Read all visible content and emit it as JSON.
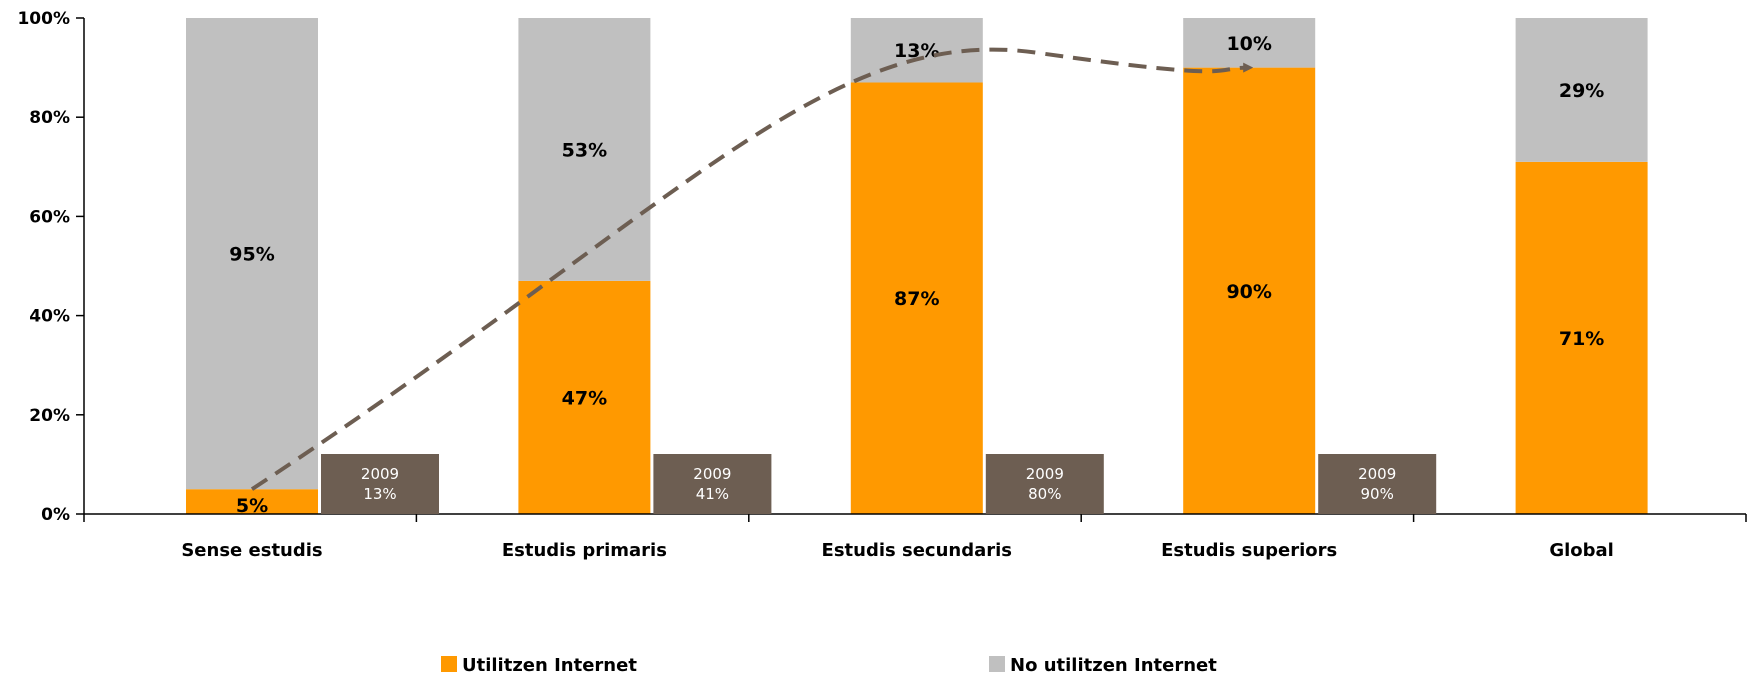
{
  "chart_data": {
    "type": "bar",
    "stacked": true,
    "categories": [
      "Sense estudis",
      "Estudis primaris",
      "Estudis secundaris",
      "Estudis superiors",
      "Global"
    ],
    "series": [
      {
        "name": "Utilitzen Internet",
        "values": [
          5,
          47,
          87,
          90,
          71
        ],
        "labels": [
          "5%",
          "47%",
          "87%",
          "90%",
          "71%"
        ],
        "color": "#ff9900"
      },
      {
        "name": "No utilitzen Internet",
        "values": [
          95,
          53,
          13,
          10,
          29
        ],
        "labels": [
          "95%",
          "53%",
          "13%",
          "10%",
          "29%"
        ],
        "color": "#c0c0c0"
      }
    ],
    "yticks": [
      "0%",
      "20%",
      "40%",
      "60%",
      "80%",
      "100%"
    ],
    "ylim": [
      0,
      100
    ],
    "grid": false,
    "legend_position": "bottom",
    "annotations": [
      {
        "category": "Sense estudis",
        "year": "2009",
        "value": "13%"
      },
      {
        "category": "Estudis primaris",
        "year": "2009",
        "value": "41%"
      },
      {
        "category": "Estudis secundaris",
        "year": "2009",
        "value": "80%"
      },
      {
        "category": "Estudis superiors",
        "year": "2009",
        "value": "90%"
      }
    ],
    "annotation_color": "#6d5e52",
    "trend_arrow": {
      "style": "dashed",
      "color": "#6d5e52"
    }
  }
}
